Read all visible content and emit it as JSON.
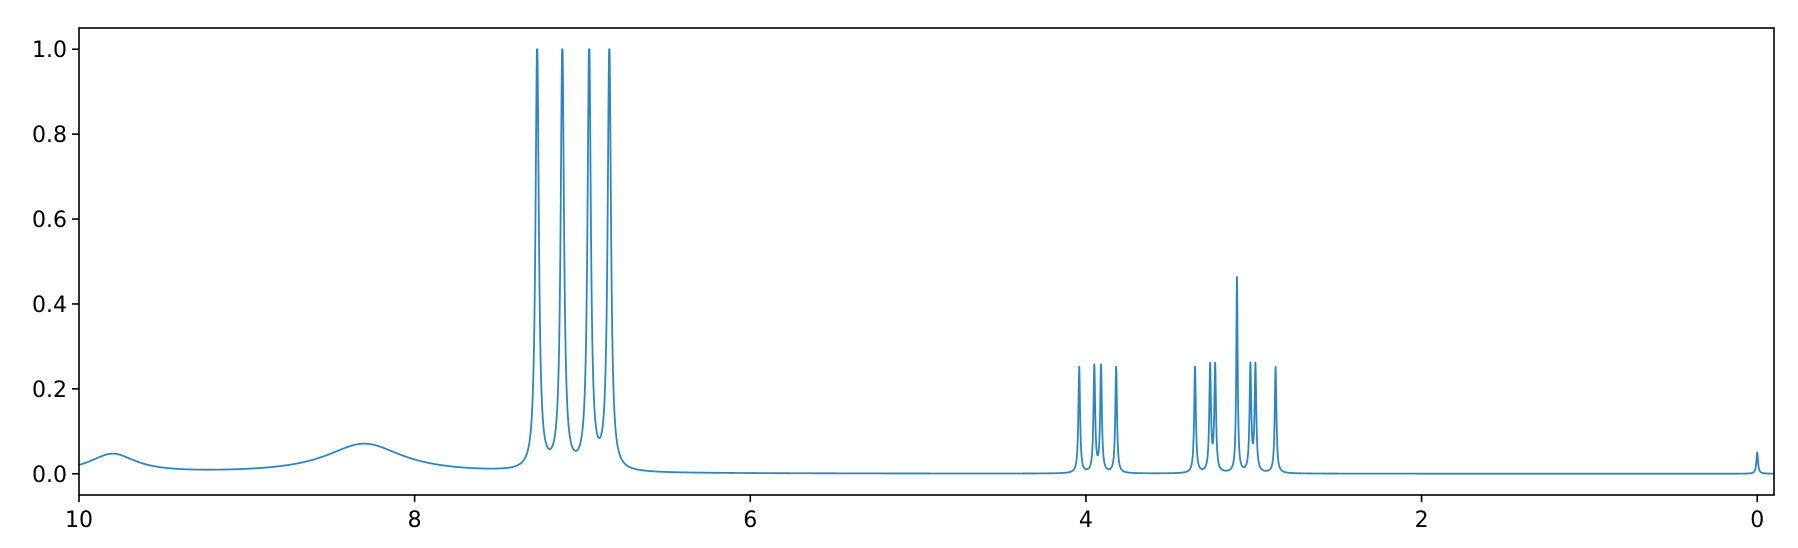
{
  "chart_data": {
    "type": "line",
    "title": "",
    "xlabel": "",
    "ylabel": "",
    "xlim": [
      10,
      -0.1
    ],
    "ylim": [
      -0.05,
      1.05
    ],
    "x_inverted": true,
    "grid": false,
    "legend": "none",
    "x_ticks": [
      10,
      8,
      6,
      4,
      2,
      0
    ],
    "x_tick_labels": [
      "10",
      "8",
      "6",
      "4",
      "2",
      "0"
    ],
    "y_ticks": [
      0.0,
      0.2,
      0.4,
      0.6,
      0.8,
      1.0
    ],
    "y_tick_labels": [
      "0.0",
      "0.2",
      "0.4",
      "0.6",
      "0.8",
      "1.0"
    ],
    "series": [
      {
        "color": "#2e86c1",
        "peaks": [
          {
            "shift": 9.8,
            "height": 0.045,
            "width": 0.17
          },
          {
            "shift": 8.3,
            "height": 0.07,
            "width": 0.28
          },
          {
            "shift": 7.27,
            "height": 1.0,
            "width": 0.012
          },
          {
            "shift": 7.12,
            "height": 1.0,
            "width": 0.012
          },
          {
            "shift": 6.96,
            "height": 1.0,
            "width": 0.012
          },
          {
            "shift": 6.84,
            "height": 1.0,
            "width": 0.012
          },
          {
            "shift": 4.04,
            "height": 0.25,
            "width": 0.006
          },
          {
            "shift": 3.95,
            "height": 0.25,
            "width": 0.006
          },
          {
            "shift": 3.91,
            "height": 0.25,
            "width": 0.006
          },
          {
            "shift": 3.82,
            "height": 0.25,
            "width": 0.006
          },
          {
            "shift": 3.35,
            "height": 0.25,
            "width": 0.006
          },
          {
            "shift": 3.26,
            "height": 0.25,
            "width": 0.006
          },
          {
            "shift": 3.23,
            "height": 0.25,
            "width": 0.006
          },
          {
            "shift": 3.1,
            "height": 0.46,
            "width": 0.005
          },
          {
            "shift": 3.02,
            "height": 0.25,
            "width": 0.006
          },
          {
            "shift": 2.99,
            "height": 0.25,
            "width": 0.006
          },
          {
            "shift": 2.87,
            "height": 0.25,
            "width": 0.006
          },
          {
            "shift": 0.0,
            "height": 0.05,
            "width": 0.006
          }
        ]
      }
    ]
  }
}
